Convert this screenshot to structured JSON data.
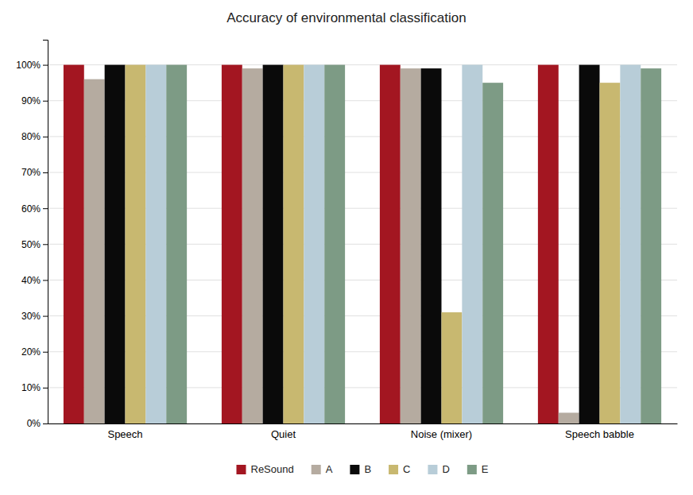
{
  "chart_data": {
    "type": "bar",
    "title": "Accuracy of environmental classification",
    "categories": [
      "Speech",
      "Quiet",
      "Noise (mixer)",
      "Speech babble"
    ],
    "series": [
      {
        "name": "ReSound",
        "color": "#a31621",
        "values": [
          100,
          100,
          100,
          100
        ]
      },
      {
        "name": "A",
        "color": "#b5aba0",
        "values": [
          96,
          99,
          99,
          3
        ]
      },
      {
        "name": "B",
        "color": "#0a0a0a",
        "values": [
          100,
          100,
          99,
          100
        ]
      },
      {
        "name": "C",
        "color": "#c8b870",
        "values": [
          100,
          100,
          31,
          95
        ]
      },
      {
        "name": "D",
        "color": "#b8cdd8",
        "values": [
          100,
          100,
          100,
          100
        ]
      },
      {
        "name": "E",
        "color": "#7d9b85",
        "values": [
          100,
          100,
          95,
          99
        ]
      }
    ],
    "ylim": [
      0,
      107
    ],
    "yticks": [
      {
        "value": 0,
        "label": "0%"
      },
      {
        "value": 10,
        "label": "10%"
      },
      {
        "value": 20,
        "label": "20%"
      },
      {
        "value": 30,
        "label": "30%"
      },
      {
        "value": 40,
        "label": "40%"
      },
      {
        "value": 50,
        "label": "50%"
      },
      {
        "value": 60,
        "label": "60%"
      },
      {
        "value": 70,
        "label": "70%"
      },
      {
        "value": 80,
        "label": "80%"
      },
      {
        "value": 90,
        "label": "90%"
      },
      {
        "value": 100,
        "label": "100%"
      }
    ],
    "grid": true,
    "legend": "bottom"
  }
}
